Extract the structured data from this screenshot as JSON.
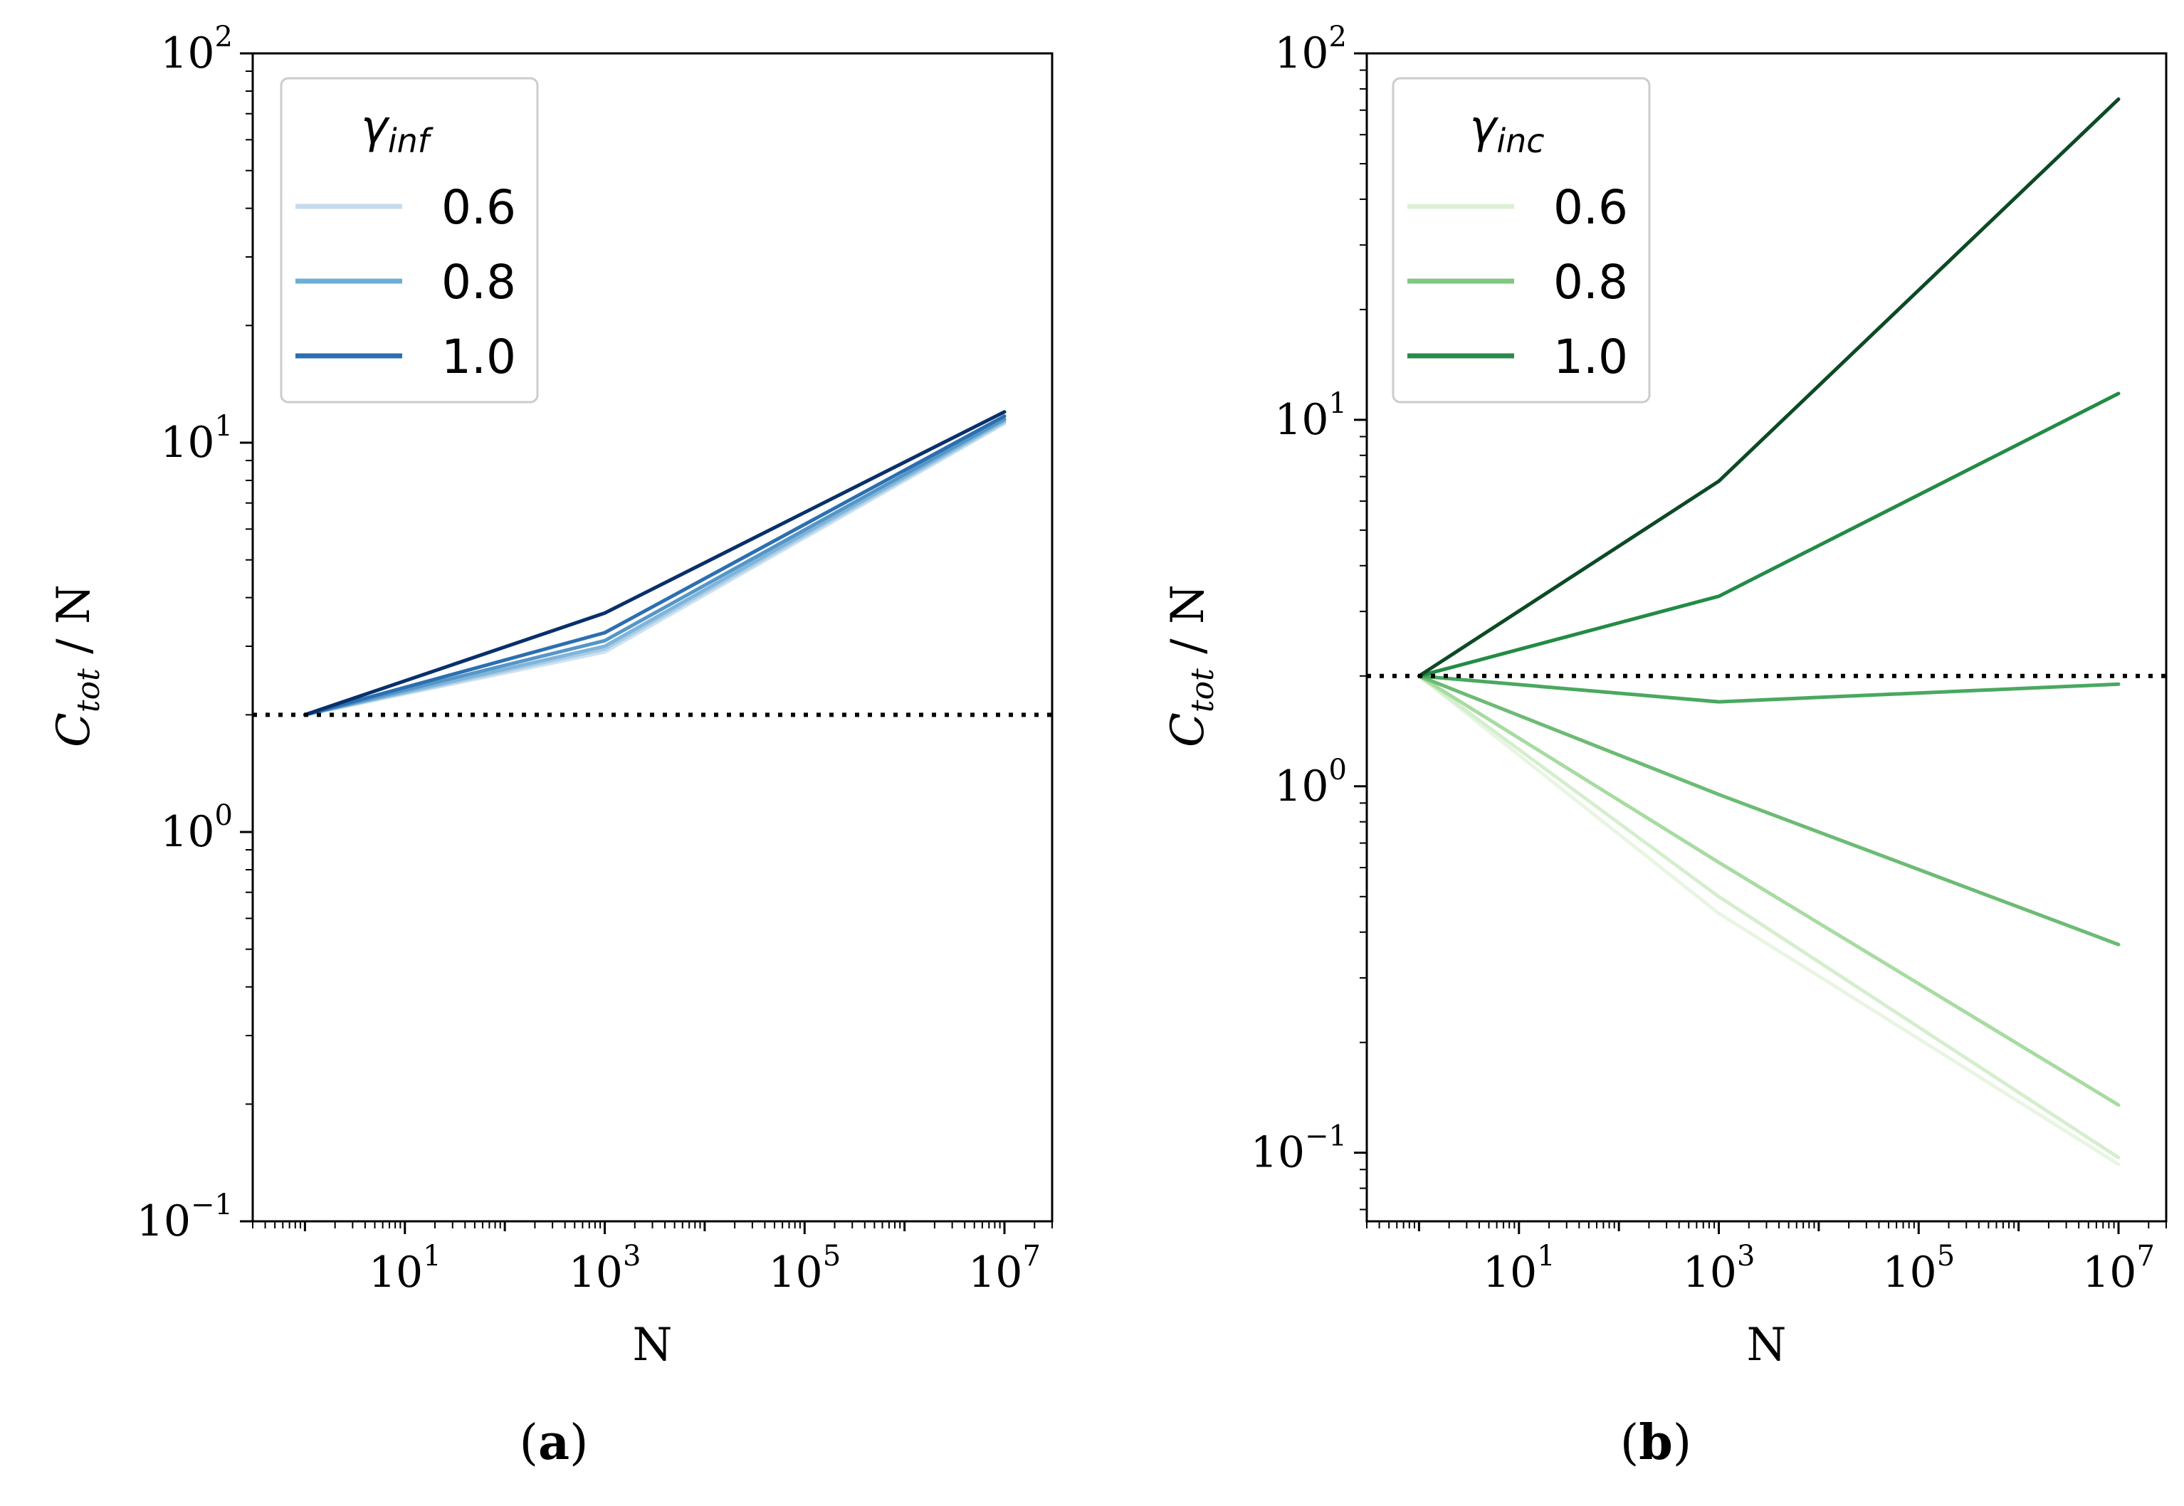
{
  "figure": {
    "panel_a_label": "a",
    "panel_b_label": "b"
  },
  "chart_data": [
    {
      "type": "line",
      "panel": "a",
      "xlabel": "N",
      "ylabel_main": "C",
      "ylabel_sub": "tot",
      "ylabel_rest": " / N",
      "xscale": "log",
      "yscale": "log",
      "xlim": [
        0.3,
        30000000
      ],
      "ylim": [
        0.1,
        100
      ],
      "xticks": [
        {
          "value": 10,
          "base": "10",
          "exp": "1"
        },
        {
          "value": 1000,
          "base": "10",
          "exp": "3"
        },
        {
          "value": 100000,
          "base": "10",
          "exp": "5"
        },
        {
          "value": 10000000,
          "base": "10",
          "exp": "7"
        }
      ],
      "yticks": [
        {
          "value": 0.1,
          "base": "10",
          "exp": "−1"
        },
        {
          "value": 1,
          "base": "10",
          "exp": "0"
        },
        {
          "value": 10,
          "base": "10",
          "exp": "1"
        },
        {
          "value": 100,
          "base": "10",
          "exp": "2"
        }
      ],
      "reference_line": {
        "y": 2,
        "style": "dotted",
        "color": "#000000"
      },
      "legend": {
        "title_main": "γ",
        "title_sub": "inf",
        "position": "upper left",
        "entries": [
          {
            "label": "0.6",
            "color": "#c6dbef"
          },
          {
            "label": "0.8",
            "color": "#6baed6"
          },
          {
            "label": "1.0",
            "color": "#2c6fb0"
          }
        ]
      },
      "x": [
        1,
        1000,
        10000000
      ],
      "series": [
        {
          "color": "#cfe1f2",
          "values": [
            2.0,
            2.9,
            11.2
          ]
        },
        {
          "color": "#a9cde5",
          "values": [
            2.0,
            2.95,
            11.3
          ]
        },
        {
          "color": "#7fb5da",
          "values": [
            2.0,
            3.0,
            11.4
          ]
        },
        {
          "color": "#5596c8",
          "values": [
            2.0,
            3.1,
            11.5
          ]
        },
        {
          "color": "#2c6fb0",
          "values": [
            2.0,
            3.25,
            11.7
          ]
        },
        {
          "color": "#08306b",
          "values": [
            2.0,
            3.65,
            12.0
          ]
        }
      ]
    },
    {
      "type": "line",
      "panel": "b",
      "xlabel": "N",
      "ylabel_main": "C",
      "ylabel_sub": "tot",
      "ylabel_rest": " / N",
      "xscale": "log",
      "yscale": "log",
      "xlim": [
        0.3,
        30000000
      ],
      "ylim": [
        0.065,
        100
      ],
      "xticks": [
        {
          "value": 10,
          "base": "10",
          "exp": "1"
        },
        {
          "value": 1000,
          "base": "10",
          "exp": "3"
        },
        {
          "value": 100000,
          "base": "10",
          "exp": "5"
        },
        {
          "value": 10000000,
          "base": "10",
          "exp": "7"
        }
      ],
      "yticks": [
        {
          "value": 0.1,
          "base": "10",
          "exp": "−1"
        },
        {
          "value": 1,
          "base": "10",
          "exp": "0"
        },
        {
          "value": 10,
          "base": "10",
          "exp": "1"
        },
        {
          "value": 100,
          "base": "10",
          "exp": "2"
        }
      ],
      "reference_line": {
        "y": 2,
        "style": "dotted",
        "color": "#000000"
      },
      "legend": {
        "title_main": "γ",
        "title_sub": "inc",
        "position": "upper left",
        "entries": [
          {
            "label": "0.6",
            "color": "#dcf0d5"
          },
          {
            "label": "0.8",
            "color": "#80c780"
          },
          {
            "label": "1.0",
            "color": "#2a8a4a"
          }
        ]
      },
      "x": [
        1,
        1000,
        10000000
      ],
      "series": [
        {
          "color": "#e8f5e2",
          "values": [
            2.0,
            0.45,
            0.093
          ]
        },
        {
          "color": "#d5eecd",
          "values": [
            2.0,
            0.5,
            0.097
          ]
        },
        {
          "color": "#a8dba2",
          "values": [
            2.0,
            0.62,
            0.135
          ]
        },
        {
          "color": "#6dbb74",
          "values": [
            2.0,
            0.95,
            0.37
          ]
        },
        {
          "color": "#4aa860",
          "values": [
            2.0,
            1.7,
            1.9
          ]
        },
        {
          "color": "#238b45",
          "values": [
            2.0,
            3.3,
            11.8
          ]
        },
        {
          "color": "#0c4a24",
          "values": [
            2.0,
            6.8,
            75
          ]
        }
      ]
    }
  ]
}
